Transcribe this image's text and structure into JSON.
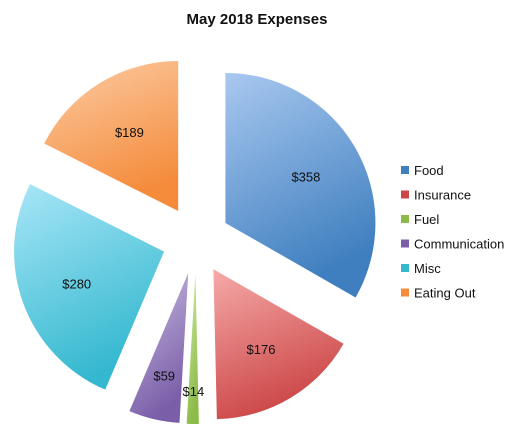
{
  "chart_data": {
    "type": "pie",
    "title": "May 2018 Expenses",
    "categories": [
      "Food",
      "Insurance",
      "Fuel",
      "Communication",
      "Misc",
      "Eating Out"
    ],
    "values": [
      358,
      176,
      14,
      59,
      280,
      189
    ],
    "data_labels": [
      "$358",
      "$176",
      "$14",
      "$59",
      "$280",
      "$189"
    ],
    "exploded": true,
    "legend_position": "right",
    "colors": [
      {
        "light": "#a9c8f0",
        "dark": "#3f7fbf"
      },
      {
        "light": "#f5aaa9",
        "dark": "#cc4646"
      },
      {
        "light": "#d3eda8",
        "dark": "#8cbb4a"
      },
      {
        "light": "#cbbde3",
        "dark": "#7a5ea8"
      },
      {
        "light": "#a8e6f7",
        "dark": "#34b8cf"
      },
      {
        "light": "#fccca4",
        "dark": "#f48c3c"
      }
    ]
  }
}
